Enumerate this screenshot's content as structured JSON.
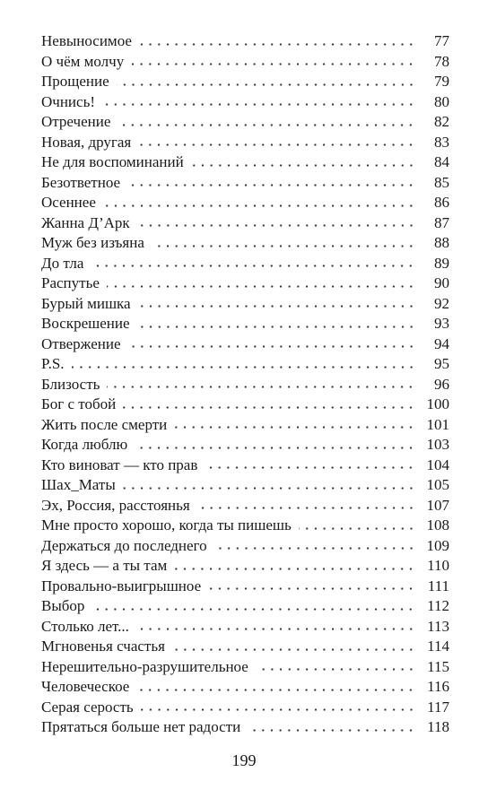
{
  "toc": {
    "entries": [
      {
        "title": "Невыносимое",
        "page": "77"
      },
      {
        "title": "О чём молчу",
        "page": "78"
      },
      {
        "title": "Прощение",
        "page": "79"
      },
      {
        "title": "Очнись!",
        "page": "80"
      },
      {
        "title": "Отречение",
        "page": "82"
      },
      {
        "title": "Новая, другая",
        "page": "83"
      },
      {
        "title": "Не для воспоминаний",
        "page": "84"
      },
      {
        "title": "Безответное",
        "page": "85"
      },
      {
        "title": "Осеннее",
        "page": "86"
      },
      {
        "title": "Жанна Д’Арк",
        "page": "87"
      },
      {
        "title": "Муж без изъяна",
        "page": "88"
      },
      {
        "title": "До тла",
        "page": "89"
      },
      {
        "title": "Распутье",
        "page": "90"
      },
      {
        "title": "Бурый мишка",
        "page": "92"
      },
      {
        "title": "Воскрешение",
        "page": "93"
      },
      {
        "title": "Отвержение",
        "page": "94"
      },
      {
        "title": "P.S.",
        "page": "95"
      },
      {
        "title": "Близость",
        "page": "96"
      },
      {
        "title": "Бог с тобой",
        "page": "100"
      },
      {
        "title": "Жить после смерти",
        "page": "101"
      },
      {
        "title": "Когда люблю",
        "page": "103"
      },
      {
        "title": "Кто виноват — кто прав",
        "page": "104"
      },
      {
        "title": "Шах_Маты",
        "page": "105"
      },
      {
        "title": "Эх, Россия, расстоянья",
        "page": "107"
      },
      {
        "title": "Мне просто хорошо, когда ты пишешь",
        "page": "108"
      },
      {
        "title": "Держаться до последнего",
        "page": "109"
      },
      {
        "title": "Я здесь — а ты там",
        "page": "110"
      },
      {
        "title": "Провально-выигрышное",
        "page": "111"
      },
      {
        "title": "Выбор",
        "page": "112"
      },
      {
        "title": "Столько лет...",
        "page": "113"
      },
      {
        "title": "Мгновенья счастья",
        "page": "114"
      },
      {
        "title": "Нерешительно-разрушительное",
        "page": "115"
      },
      {
        "title": "Человеческое",
        "page": "116"
      },
      {
        "title": "Серая серость",
        "page": "117"
      },
      {
        "title": "Прятаться больше нет радости",
        "page": "118"
      }
    ]
  },
  "page_number": "199"
}
